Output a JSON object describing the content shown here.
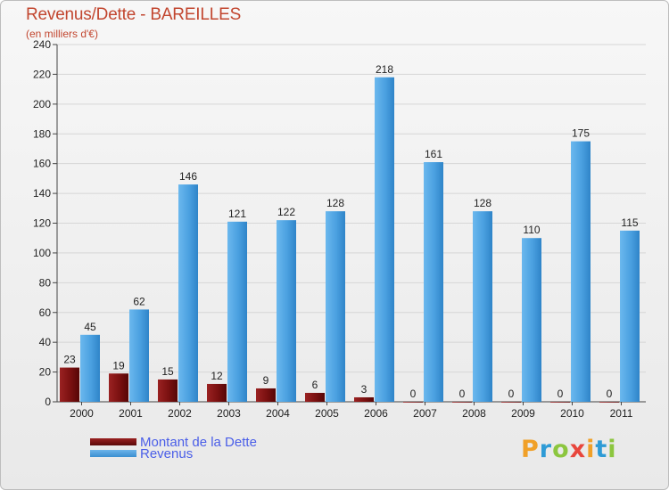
{
  "title": "Revenus/Dette - BAREILLES",
  "subtitle": "(en milliers d'€)",
  "colors": {
    "dette": "#7a1010",
    "revenus": "#4aa0e0",
    "axis_text": "#222222",
    "grid": "#d6d6d6"
  },
  "legend": [
    {
      "label": "Montant de la Dette",
      "color": "#7a1010"
    },
    {
      "label": "Revenus",
      "color": "#4aa0e0"
    }
  ],
  "logo": {
    "letters": [
      "P",
      "r",
      "o",
      "x",
      "i",
      "t",
      "i"
    ],
    "colors": [
      "#f0a028",
      "#2e9bd6",
      "#8cc63f",
      "#e8463c",
      "#f0a028",
      "#2e9bd6",
      "#8cc63f"
    ]
  },
  "chart_data": {
    "type": "bar",
    "categories": [
      "2000",
      "2001",
      "2002",
      "2003",
      "2004",
      "2005",
      "2006",
      "2007",
      "2008",
      "2009",
      "2010",
      "2011"
    ],
    "series": [
      {
        "name": "Montant de la Dette",
        "values": [
          23,
          19,
          15,
          12,
          9,
          6,
          3,
          0,
          0,
          0,
          0,
          0
        ]
      },
      {
        "name": "Revenus",
        "values": [
          45,
          62,
          146,
          121,
          122,
          128,
          218,
          161,
          128,
          110,
          175,
          115
        ]
      }
    ],
    "ylim": [
      0,
      240
    ],
    "yticks": [
      0,
      20,
      40,
      60,
      80,
      100,
      120,
      140,
      160,
      180,
      200,
      220,
      240
    ],
    "grid": true,
    "legend_position": "bottom-left"
  }
}
